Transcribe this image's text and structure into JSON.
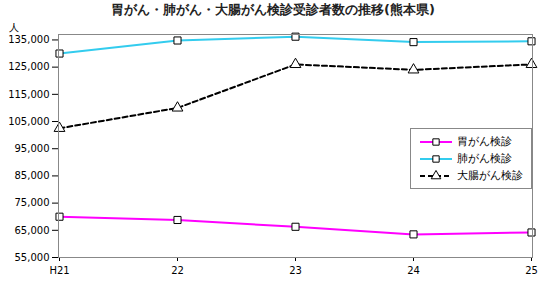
{
  "chart_data": {
    "type": "line",
    "title": "胃がん・肺がん・大腸がん検診受診者数の推移(熊本県)",
    "y_label": "人",
    "categories": [
      "H21",
      "22",
      "23",
      "24",
      "25"
    ],
    "series": [
      {
        "name": "胃がん検診",
        "color": "#ff00ff",
        "marker": "square",
        "line_style": "solid",
        "values": [
          70000,
          68800,
          66300,
          63500,
          64200
        ]
      },
      {
        "name": "肺がん検診",
        "color": "#33ccee",
        "marker": "square",
        "line_style": "solid",
        "values": [
          130000,
          134800,
          136200,
          134200,
          134500
        ]
      },
      {
        "name": "大腸がん検診",
        "color": "#000000",
        "marker": "triangle",
        "line_style": "dashed",
        "values": [
          102500,
          110000,
          126000,
          124000,
          126000
        ]
      }
    ],
    "ylim": [
      55000,
      137000
    ],
    "yticks": [
      {
        "value": 55000,
        "label": "55,000"
      },
      {
        "value": 65000,
        "label": "65,000"
      },
      {
        "value": 75000,
        "label": "75,000"
      },
      {
        "value": 85000,
        "label": "85,000"
      },
      {
        "value": 95000,
        "label": "95,000"
      },
      {
        "value": 105000,
        "label": "105,000"
      },
      {
        "value": 115000,
        "label": "115,000"
      },
      {
        "value": 125000,
        "label": "125,000"
      },
      {
        "value": 135000,
        "label": "135,000"
      }
    ],
    "grid": false,
    "legend": "right"
  }
}
